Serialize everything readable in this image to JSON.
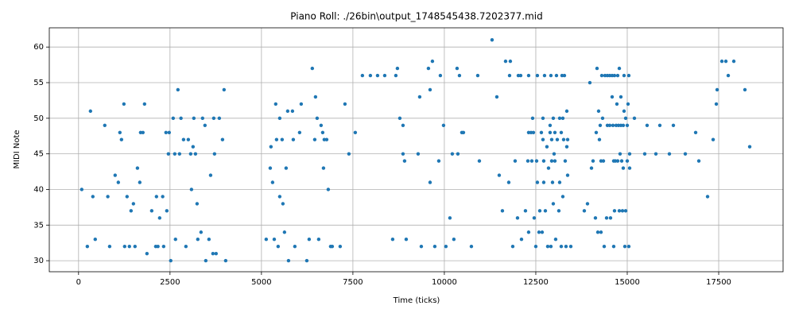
{
  "chart_data": {
    "type": "scatter",
    "title": "Piano Roll: ./26bin\\output_1748545438.7202377.mid",
    "x_label": "Time (ticks)",
    "y_label": "MIDI Note",
    "xlim": [
      -800,
      19260
    ],
    "ylim": [
      28.45,
      62.7
    ],
    "xticks": [
      0,
      2500,
      5000,
      7500,
      10000,
      12500,
      15000,
      17500
    ],
    "yticks": [
      30,
      35,
      40,
      45,
      50,
      55,
      60
    ],
    "grid": true,
    "color": "#1f77b4",
    "x": [
      87,
      240,
      326,
      391,
      456,
      717,
      800,
      850,
      1000,
      1087,
      1130,
      1174,
      1240,
      1260,
      1326,
      1390,
      1435,
      1500,
      1543,
      1610,
      1674,
      1696,
      1760,
      1804,
      1870,
      2000,
      2110,
      2130,
      2170,
      2217,
      2300,
      2326,
      2390,
      2413,
      2456,
      2478,
      2520,
      2587,
      2630,
      2650,
      2717,
      2760,
      2800,
      2870,
      2935,
      3000,
      3065,
      3087,
      3130,
      3152,
      3196,
      3240,
      3260,
      3348,
      3390,
      3456,
      3478,
      3565,
      3610,
      3674,
      3696,
      3717,
      3760,
      3848,
      3935,
      3978,
      4022,
      5130,
      5240,
      5260,
      5304,
      5350,
      5390,
      5413,
      5456,
      5500,
      5500,
      5565,
      5587,
      5630,
      5674,
      5717,
      5740,
      5848,
      5870,
      5913,
      6043,
      6087,
      6240,
      6304,
      6390,
      6457,
      6478,
      6522,
      6565,
      6630,
      6674,
      6696,
      6717,
      6783,
      6826,
      6891,
      6935,
      7152,
      7283,
      7391,
      7565,
      7760,
      7978,
      8174,
      8370,
      8587,
      8674,
      8717,
      8783,
      8870,
      8870,
      8913,
      8957,
      9283,
      9326,
      9370,
      9565,
      9610,
      9610,
      9674,
      9739,
      9848,
      9891,
      9978,
      10043,
      10152,
      10217,
      10260,
      10348,
      10370,
      10413,
      10478,
      10522,
      10739,
      10913,
      10957,
      11304,
      11435,
      11500,
      11587,
      11674,
      11761,
      11783,
      11804,
      11870,
      11935,
      12000,
      12022,
      12087,
      12109,
      12217,
      12283,
      12304,
      12304,
      12304,
      12370,
      12391,
      12413,
      12435,
      12456,
      12500,
      12522,
      12543,
      12543,
      12587,
      12609,
      12652,
      12674,
      12696,
      12696,
      12717,
      12717,
      12739,
      12761,
      12804,
      12826,
      12848,
      12891,
      12891,
      12913,
      12913,
      12935,
      12935,
      12957,
      12978,
      12978,
      13000,
      13022,
      13022,
      13043,
      13065,
      13087,
      13130,
      13152,
      13152,
      13196,
      13196,
      13217,
      13239,
      13239,
      13261,
      13283,
      13304,
      13326,
      13348,
      13348,
      13370,
      13370,
      13457,
      13826,
      13913,
      13978,
      14022,
      14065,
      14130,
      14152,
      14174,
      14196,
      14217,
      14239,
      14261,
      14283,
      14283,
      14304,
      14326,
      14348,
      14370,
      14391,
      14435,
      14457,
      14457,
      14522,
      14522,
      14543,
      14587,
      14587,
      14609,
      14630,
      14630,
      14652,
      14652,
      14674,
      14696,
      14717,
      14739,
      14739,
      14761,
      14783,
      14783,
      14804,
      14826,
      14826,
      14848,
      14870,
      14891,
      14891,
      14913,
      14913,
      14935,
      14957,
      14957,
      15000,
      15000,
      15022,
      15043,
      15043,
      15065,
      15065,
      15196,
      15478,
      15543,
      15783,
      15891,
      16152,
      16261,
      16587,
      16870,
      16957,
      17196,
      17348,
      17435,
      17457,
      17587,
      17696,
      17761,
      17913,
      18217,
      18348
    ],
    "values": [
      40,
      32,
      51,
      39,
      33,
      49,
      39,
      32,
      42,
      41,
      48,
      47,
      52,
      32,
      39,
      32,
      37,
      38,
      32,
      43,
      41,
      48,
      48,
      52,
      31,
      37,
      32,
      39,
      32,
      36,
      39,
      32,
      48,
      37,
      45,
      48,
      30,
      50,
      45,
      33,
      54,
      45,
      50,
      47,
      32,
      47,
      45,
      40,
      46,
      50,
      45,
      38,
      33,
      34,
      50,
      49,
      30,
      33,
      42,
      31,
      50,
      45,
      31,
      50,
      47,
      54,
      30,
      33,
      43,
      46,
      41,
      33,
      52,
      47,
      32,
      50,
      39,
      47,
      38,
      34,
      43,
      51,
      30,
      51,
      47,
      32,
      48,
      52,
      30,
      33,
      57,
      47,
      53,
      50,
      33,
      49,
      48,
      43,
      47,
      47,
      40,
      32,
      32,
      32,
      52,
      45,
      48,
      56,
      56,
      56,
      56,
      33,
      56,
      57,
      50,
      49,
      45,
      44,
      33,
      45,
      53,
      32,
      57,
      54,
      41,
      58,
      32,
      44,
      56,
      49,
      32,
      36,
      45,
      33,
      57,
      45,
      56,
      48,
      48,
      32,
      56,
      44,
      61,
      53,
      42,
      37,
      58,
      41,
      56,
      58,
      32,
      44,
      36,
      56,
      56,
      33,
      37,
      44,
      56,
      34,
      48,
      48,
      44,
      50,
      48,
      36,
      32,
      44,
      56,
      41,
      34,
      37,
      48,
      34,
      50,
      47,
      44,
      41,
      56,
      37,
      46,
      32,
      43,
      49,
      48,
      56,
      32,
      47,
      44,
      41,
      50,
      38,
      45,
      48,
      44,
      33,
      56,
      47,
      37,
      50,
      41,
      48,
      32,
      56,
      50,
      39,
      47,
      56,
      44,
      32,
      46,
      51,
      42,
      47,
      32,
      37,
      38,
      55,
      43,
      44,
      36,
      48,
      57,
      34,
      51,
      47,
      49,
      34,
      44,
      56,
      50,
      44,
      32,
      56,
      36,
      56,
      49,
      56,
      49,
      36,
      56,
      53,
      49,
      44,
      32,
      56,
      37,
      44,
      49,
      52,
      56,
      44,
      49,
      57,
      37,
      45,
      53,
      49,
      44,
      37,
      49,
      43,
      56,
      51,
      32,
      50,
      37,
      44,
      49,
      52,
      56,
      32,
      43,
      45,
      50,
      45,
      49,
      45,
      49,
      45,
      49,
      45,
      48,
      44,
      39,
      47,
      52,
      54,
      58,
      58,
      56,
      58,
      54,
      46
    ]
  }
}
